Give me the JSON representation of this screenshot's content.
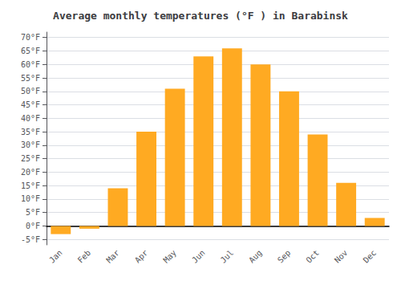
{
  "chart_data": {
    "type": "bar",
    "title": "Average monthly temperatures (°F ) in Barabinsk",
    "categories": [
      "Jan",
      "Feb",
      "Mar",
      "Apr",
      "May",
      "Jun",
      "Jul",
      "Aug",
      "Sep",
      "Oct",
      "Nov",
      "Dec"
    ],
    "values": [
      -3,
      -1,
      14,
      35,
      51,
      63,
      66,
      60,
      50,
      34,
      16,
      3
    ],
    "color": "#FFAA22",
    "ylim": [
      -7,
      72
    ],
    "yticks": [
      {
        "value": -5,
        "label": "-5°F"
      },
      {
        "value": 0,
        "label": "0°F"
      },
      {
        "value": 5,
        "label": "5°F"
      },
      {
        "value": 10,
        "label": "10°F"
      },
      {
        "value": 15,
        "label": "15°F"
      },
      {
        "value": 20,
        "label": "20°F"
      },
      {
        "value": 25,
        "label": "25°F"
      },
      {
        "value": 30,
        "label": "30°F"
      },
      {
        "value": 35,
        "label": "35°F"
      },
      {
        "value": 40,
        "label": "40°F"
      },
      {
        "value": 45,
        "label": "45°F"
      },
      {
        "value": 50,
        "label": "50°F"
      },
      {
        "value": 55,
        "label": "55°F"
      },
      {
        "value": 60,
        "label": "60°F"
      },
      {
        "value": 65,
        "label": "65°F"
      },
      {
        "value": 70,
        "label": "70°F"
      }
    ],
    "grid": true
  }
}
